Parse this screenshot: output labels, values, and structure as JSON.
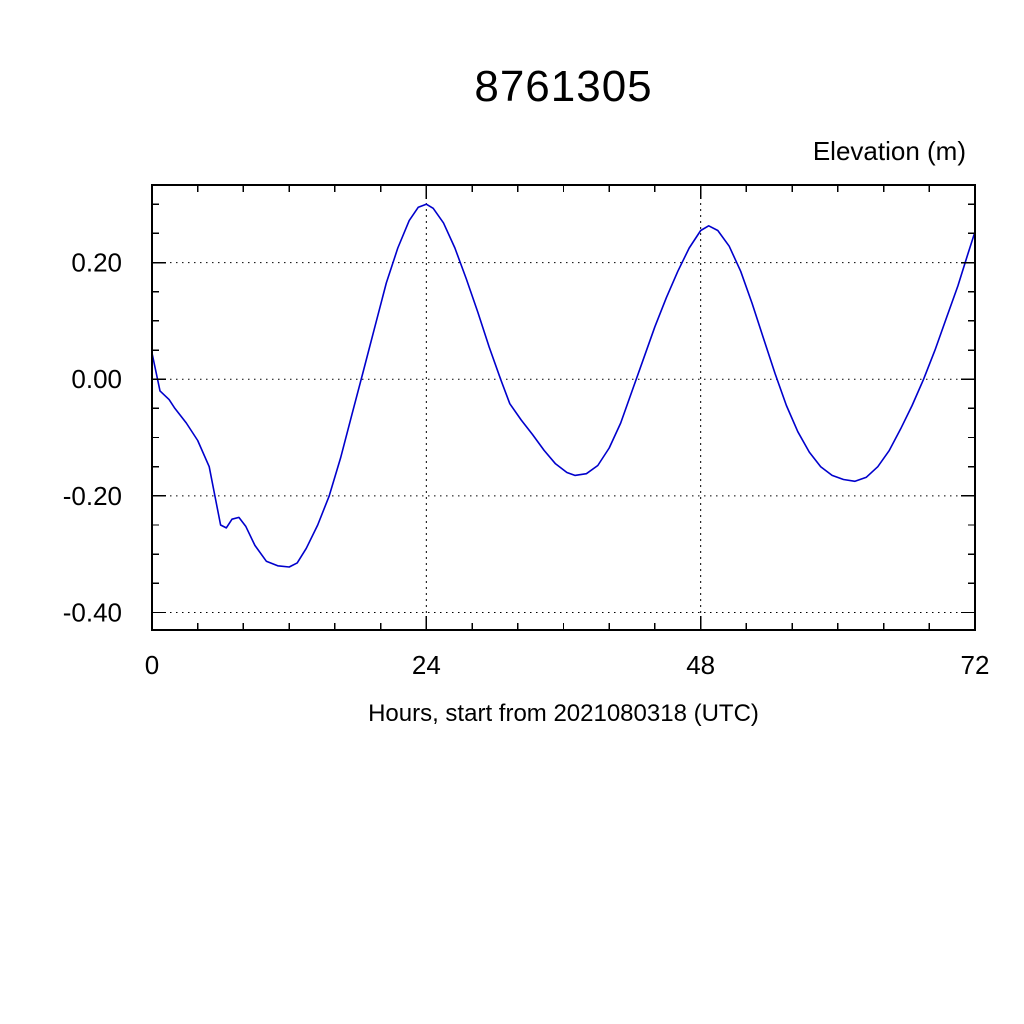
{
  "title": "8761305",
  "chart_data": {
    "type": "line",
    "title": "8761305",
    "ylabel": "Elevation (m)",
    "xlabel": "Hours, start from 2021080318 (UTC)",
    "line_color": "#0000cc",
    "frame_color": "#000000",
    "grid_on": true,
    "legend": "none",
    "xlim": [
      0,
      72
    ],
    "ylim": [
      -0.43,
      0.333
    ],
    "x_ticks": {
      "major": [
        0,
        24,
        48,
        72
      ],
      "labels": [
        "0",
        "24",
        "48",
        "72"
      ],
      "minor_step": 4
    },
    "y_ticks": {
      "major": [
        -0.4,
        -0.2,
        0.0,
        0.2
      ],
      "labels": [
        "-0.40",
        "-0.20",
        "0.00",
        "0.20"
      ],
      "minor_step": 0.05
    },
    "grid": {
      "x": [
        24,
        48
      ],
      "y": [
        -0.4,
        -0.2,
        0.0,
        0.2
      ]
    },
    "points": [
      [
        0,
        0.045
      ],
      [
        0.7,
        -0.02
      ],
      [
        1.5,
        -0.035
      ],
      [
        2,
        -0.05
      ],
      [
        3,
        -0.075
      ],
      [
        4,
        -0.105
      ],
      [
        5,
        -0.15
      ],
      [
        5.5,
        -0.2
      ],
      [
        6,
        -0.25
      ],
      [
        6.5,
        -0.255
      ],
      [
        7,
        -0.24
      ],
      [
        7.6,
        -0.237
      ],
      [
        8.2,
        -0.252
      ],
      [
        9,
        -0.285
      ],
      [
        10,
        -0.312
      ],
      [
        11,
        -0.32
      ],
      [
        12,
        -0.322
      ],
      [
        12.7,
        -0.315
      ],
      [
        13.5,
        -0.29
      ],
      [
        14.5,
        -0.25
      ],
      [
        15.5,
        -0.2
      ],
      [
        16.5,
        -0.135
      ],
      [
        17.5,
        -0.06
      ],
      [
        18.5,
        0.015
      ],
      [
        19.5,
        0.09
      ],
      [
        20.5,
        0.165
      ],
      [
        21.5,
        0.225
      ],
      [
        22.5,
        0.272
      ],
      [
        23.3,
        0.295
      ],
      [
        24,
        0.3
      ],
      [
        24.6,
        0.293
      ],
      [
        25.5,
        0.268
      ],
      [
        26.5,
        0.225
      ],
      [
        27.5,
        0.172
      ],
      [
        28.5,
        0.115
      ],
      [
        29.5,
        0.055
      ],
      [
        30.5,
        0.0
      ],
      [
        31.3,
        -0.042
      ],
      [
        32.3,
        -0.07
      ],
      [
        33.3,
        -0.095
      ],
      [
        34.3,
        -0.122
      ],
      [
        35.3,
        -0.145
      ],
      [
        36.3,
        -0.16
      ],
      [
        37,
        -0.165
      ],
      [
        38,
        -0.162
      ],
      [
        39,
        -0.148
      ],
      [
        40,
        -0.118
      ],
      [
        41,
        -0.075
      ],
      [
        42,
        -0.02
      ],
      [
        43,
        0.035
      ],
      [
        44,
        0.09
      ],
      [
        45,
        0.14
      ],
      [
        46,
        0.185
      ],
      [
        47,
        0.225
      ],
      [
        48,
        0.255
      ],
      [
        48.7,
        0.263
      ],
      [
        49.5,
        0.255
      ],
      [
        50.5,
        0.228
      ],
      [
        51.5,
        0.185
      ],
      [
        52.5,
        0.13
      ],
      [
        53.5,
        0.07
      ],
      [
        54.5,
        0.01
      ],
      [
        55.5,
        -0.045
      ],
      [
        56.5,
        -0.09
      ],
      [
        57.5,
        -0.125
      ],
      [
        58.5,
        -0.15
      ],
      [
        59.5,
        -0.165
      ],
      [
        60.5,
        -0.172
      ],
      [
        61.5,
        -0.175
      ],
      [
        62.5,
        -0.168
      ],
      [
        63.5,
        -0.15
      ],
      [
        64.5,
        -0.122
      ],
      [
        65.5,
        -0.085
      ],
      [
        66.5,
        -0.045
      ],
      [
        67.5,
        0.0
      ],
      [
        68.5,
        0.05
      ],
      [
        69.5,
        0.105
      ],
      [
        70.5,
        0.16
      ],
      [
        71.3,
        0.21
      ],
      [
        72,
        0.253
      ]
    ]
  }
}
